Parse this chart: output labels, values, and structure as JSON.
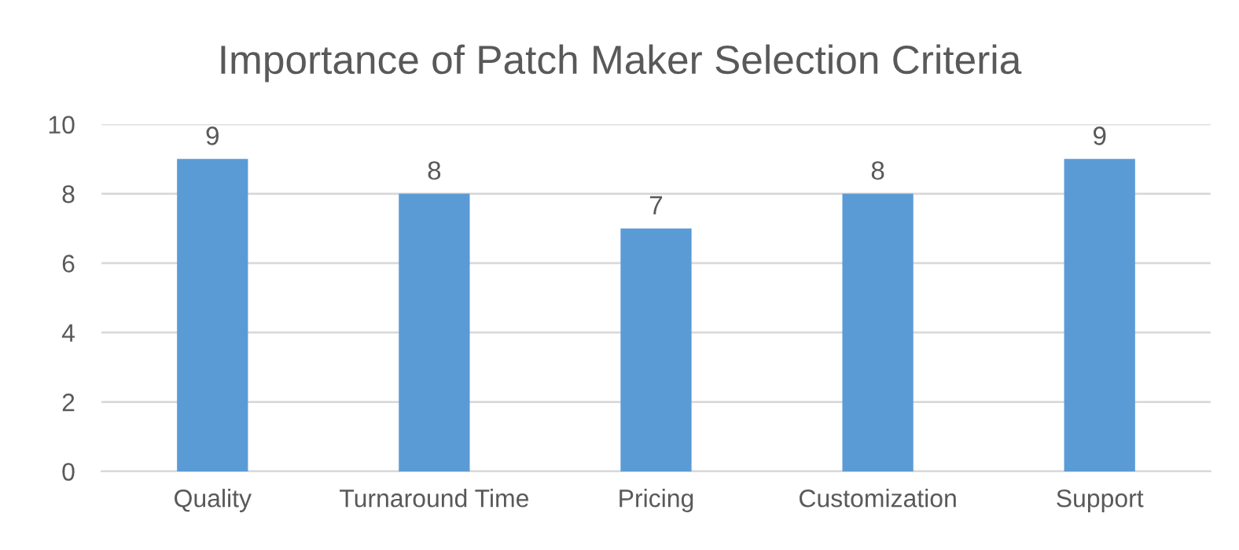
{
  "chart_data": {
    "type": "bar",
    "title": "Importance of Patch Maker Selection Criteria",
    "categories": [
      "Quality",
      "Turnaround Time",
      "Pricing",
      "Customization",
      "Support"
    ],
    "values": [
      9,
      8,
      7,
      8,
      9
    ],
    "color": "#5b9bd5",
    "ylim": [
      0,
      10
    ],
    "yticks": [
      0,
      2,
      4,
      6,
      8,
      10
    ],
    "grid": "y",
    "data_labels": true,
    "legend": false
  }
}
